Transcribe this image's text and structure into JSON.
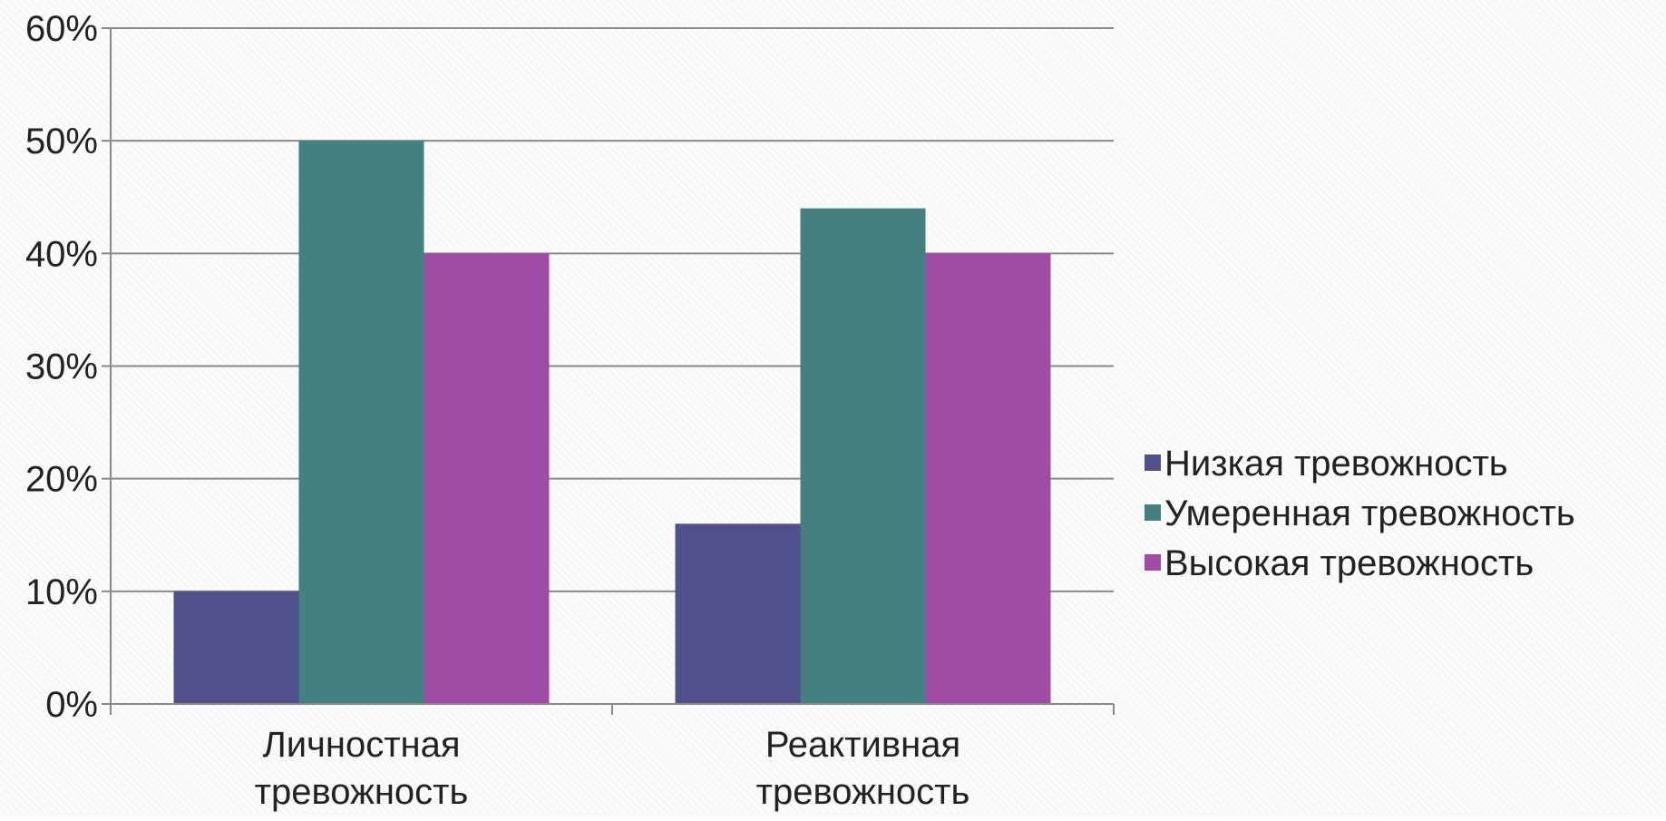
{
  "chart_data": {
    "type": "bar",
    "title": "",
    "xlabel": "",
    "ylabel": "",
    "categories": [
      [
        "Личностная",
        "тревожность"
      ],
      [
        "Реактивная",
        "тревожность"
      ]
    ],
    "series": [
      {
        "name": "Низкая тревожность",
        "values": [
          10,
          16
        ],
        "color": "#51508a"
      },
      {
        "name": "Умеренная тревожность",
        "values": [
          50,
          44
        ],
        "color": "#428180"
      },
      {
        "name": "Высокая тревожность",
        "values": [
          40,
          40
        ],
        "color": "#a04ca4"
      }
    ],
    "ylim": [
      0,
      60
    ],
    "yticks": [
      0,
      10,
      20,
      30,
      40,
      50,
      60
    ],
    "ytick_labels": [
      "0%",
      "10%",
      "20%",
      "30%",
      "40%",
      "50%",
      "60%"
    ],
    "grid": true,
    "legend_position": "right"
  }
}
